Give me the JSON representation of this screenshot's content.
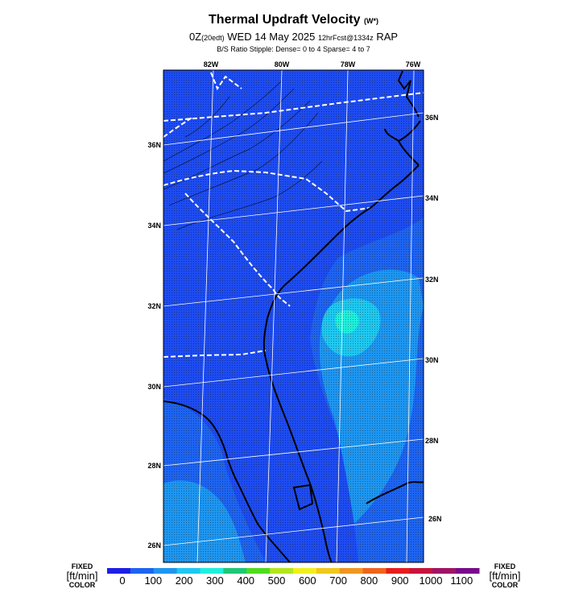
{
  "title": {
    "main": "Thermal Updraft Velocity",
    "main_units": "(W*)",
    "line2_time": "0Z",
    "line2_local": "(20edt)",
    "line2_date": "WED 14 May 2025",
    "line2_run": "12hrFcst@1334z",
    "line2_model": "RAP",
    "line3": "B/S Ratio Stipple:  Dense= 0 to 4  Sparse= 4 to 7"
  },
  "map": {
    "lon_labels": [
      "82W",
      "80W",
      "78W",
      "76W"
    ],
    "lat_labels_left": [
      "36N",
      "34N",
      "32N",
      "30N",
      "28N",
      "26N"
    ],
    "lat_labels_right": [
      "36N",
      "34N",
      "32N",
      "30N",
      "28N",
      "26N"
    ]
  },
  "colorbar": {
    "left_label_top": "FIXED",
    "left_label_mid": "[ft/min]",
    "left_label_bot": "COLOR",
    "right_label_top": "FIXED",
    "right_label_mid": "[ft/min]",
    "right_label_bot": "COLOR",
    "ticks": [
      "0",
      "100",
      "200",
      "300",
      "400",
      "500",
      "600",
      "700",
      "800",
      "900",
      "1000",
      "1100"
    ],
    "colors": [
      "#1e1ee6",
      "#1e64f0",
      "#1e96f0",
      "#1ec8f0",
      "#1ef0dc",
      "#1ec878",
      "#50dc1e",
      "#b4e61e",
      "#f0f01e",
      "#f0c81e",
      "#f0961e",
      "#f0641e",
      "#e61e1e",
      "#c8143c",
      "#a01464",
      "#780a8c"
    ]
  }
}
